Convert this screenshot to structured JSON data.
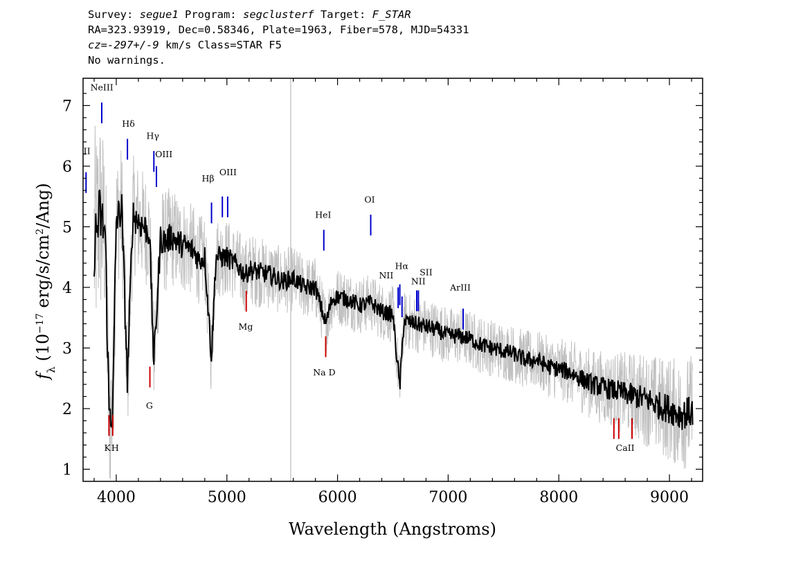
{
  "header": {
    "survey_label": "Survey: ",
    "survey": "segue1",
    "program_label": " Program: ",
    "program": "segclusterf",
    "target_label": " Target: ",
    "target": "F_STAR",
    "line2": "RA=323.93919, Dec=0.58346, Plate=1963, Fiber=578, MJD=54331",
    "cz_label": "cz=",
    "cz_value": "-297+/-9",
    "cz_rest": " km/s Class=STAR F5",
    "line4": "No warnings."
  },
  "chart_data": {
    "type": "line",
    "xlabel": "Wavelength (Angstroms)",
    "ylabel": "f_λ (10^-17 erg/s/cm^2/Ang)",
    "xlim": [
      3700,
      9300
    ],
    "ylim": [
      0.8,
      7.45
    ],
    "xticks": [
      4000,
      5000,
      6000,
      7000,
      8000,
      9000
    ],
    "yticks": [
      1,
      2,
      3,
      4,
      5,
      6,
      7
    ],
    "sky_line_x": 5577,
    "series": [
      {
        "role": "flux",
        "color": "#000000",
        "x": [
          3800,
          3850,
          3900,
          3934,
          3968,
          4000,
          4050,
          4101,
          4150,
          4200,
          4250,
          4300,
          4340,
          4400,
          4450,
          4500,
          4550,
          4600,
          4650,
          4700,
          4750,
          4800,
          4861,
          4900,
          4950,
          5000,
          5100,
          5172,
          5200,
          5300,
          5400,
          5500,
          5600,
          5700,
          5800,
          5893,
          5950,
          6000,
          6100,
          6200,
          6300,
          6400,
          6500,
          6563,
          6600,
          6700,
          6800,
          6900,
          7000,
          7100,
          7200,
          7300,
          7400,
          7500,
          7600,
          7700,
          7800,
          7900,
          8000,
          8100,
          8200,
          8300,
          8400,
          8500,
          8600,
          8700,
          8800,
          8900,
          9000,
          9100,
          9200
        ],
        "y": [
          4.7,
          5.2,
          4.9,
          1.95,
          1.95,
          5.1,
          5.3,
          2.45,
          5.2,
          5.1,
          5.0,
          4.9,
          2.75,
          4.8,
          4.75,
          4.85,
          4.75,
          4.7,
          4.65,
          4.6,
          4.45,
          4.5,
          2.85,
          4.5,
          4.5,
          4.5,
          4.35,
          4.2,
          4.3,
          4.25,
          4.2,
          4.1,
          4.15,
          4.0,
          4.0,
          3.4,
          3.8,
          3.85,
          3.8,
          3.7,
          3.75,
          3.6,
          3.55,
          2.35,
          3.45,
          3.4,
          3.35,
          3.3,
          3.2,
          3.2,
          3.15,
          3.05,
          3.0,
          2.95,
          2.9,
          2.8,
          2.8,
          2.7,
          2.65,
          2.6,
          2.5,
          2.4,
          2.35,
          2.3,
          2.25,
          2.2,
          2.15,
          2.05,
          2.0,
          1.9,
          1.95
        ]
      },
      {
        "role": "noise envelope",
        "color": "#c0c0c0",
        "x": [
          3800,
          3900,
          4000,
          4200,
          4400,
          4600,
          4800,
          5000,
          5500,
          6000,
          6500,
          7000,
          7500,
          8000,
          8500,
          9000,
          9200
        ],
        "spread": [
          1.2,
          1.0,
          0.7,
          0.6,
          0.55,
          0.5,
          0.45,
          0.4,
          0.35,
          0.3,
          0.3,
          0.3,
          0.3,
          0.32,
          0.4,
          0.55,
          0.6
        ]
      }
    ],
    "emission_lines": [
      {
        "label": "NeIII",
        "x": 3869,
        "y": 7.05
      },
      {
        "label": "Hδ",
        "x": 4101,
        "y": 6.45
      },
      {
        "label": "Hγ",
        "x": 4340,
        "y": 6.25
      },
      {
        "label": "OIII",
        "x": 4363,
        "y": 6.0
      },
      {
        "label": "Hβ",
        "x": 4861,
        "y": 5.4
      },
      {
        "label": "OIII",
        "x": 4959,
        "y": 5.5
      },
      {
        "label": "OIII",
        "x": 5007,
        "y": 5.5
      },
      {
        "label": "HeI",
        "x": 5876,
        "y": 4.95
      },
      {
        "label": "OI",
        "x": 6300,
        "y": 5.2
      },
      {
        "label": "NII",
        "x": 6548,
        "y": 4.0
      },
      {
        "label": "Hα",
        "x": 6563,
        "y": 4.05
      },
      {
        "label": "NII",
        "x": 6583,
        "y": 3.85
      },
      {
        "label": "SII",
        "x": 6716,
        "y": 3.95
      },
      {
        "label": "SII",
        "x": 6731,
        "y": 3.95
      },
      {
        "label": "ArIII",
        "x": 7135,
        "y": 3.65
      },
      {
        "label": "II",
        "x": 3727,
        "y": 5.9
      }
    ],
    "absorption_lines": [
      {
        "label": "K",
        "x": 3934,
        "y": 1.55
      },
      {
        "label": "H",
        "x": 3968,
        "y": 1.55
      },
      {
        "label": "G",
        "x": 4304,
        "y": 2.35
      },
      {
        "label": "Mg",
        "x": 5175,
        "y": 3.6
      },
      {
        "label": "Na D",
        "x": 5893,
        "y": 2.85
      },
      {
        "label": "CaII",
        "x": 8498,
        "y": 1.5
      },
      {
        "label": "CaII",
        "x": 8542,
        "y": 1.5
      },
      {
        "label": "CaII",
        "x": 8662,
        "y": 1.5
      }
    ],
    "line_labels": [
      {
        "text": "NeIII",
        "x": 3870,
        "y": 7.25
      },
      {
        "text": "Hδ",
        "x": 4110,
        "y": 6.65
      },
      {
        "text": "Hγ",
        "x": 4330,
        "y": 6.45
      },
      {
        "text": "OIII",
        "x": 4430,
        "y": 6.15
      },
      {
        "text": "Hβ",
        "x": 4830,
        "y": 5.75
      },
      {
        "text": "OIII",
        "x": 5010,
        "y": 5.85
      },
      {
        "text": "HeI",
        "x": 5870,
        "y": 5.15
      },
      {
        "text": "OI",
        "x": 6290,
        "y": 5.4
      },
      {
        "text": "NII",
        "x": 6440,
        "y": 4.15
      },
      {
        "text": "Hα",
        "x": 6580,
        "y": 4.3
      },
      {
        "text": "NII",
        "x": 6730,
        "y": 4.05
      },
      {
        "text": "SII",
        "x": 6800,
        "y": 4.2
      },
      {
        "text": "ArIII",
        "x": 7110,
        "y": 3.95
      },
      {
        "text": "II",
        "x": 3735,
        "y": 6.2
      },
      {
        "text": "K",
        "x": 3920,
        "y": 1.3
      },
      {
        "text": "H",
        "x": 3990,
        "y": 1.3
      },
      {
        "text": "G",
        "x": 4300,
        "y": 2.0
      },
      {
        "text": "Mg",
        "x": 5170,
        "y": 3.3
      },
      {
        "text": "Na D",
        "x": 5880,
        "y": 2.55
      },
      {
        "text": "CaII",
        "x": 8600,
        "y": 1.3
      }
    ],
    "emission_color": "#0000cc",
    "absorption_color": "#cc0000"
  }
}
